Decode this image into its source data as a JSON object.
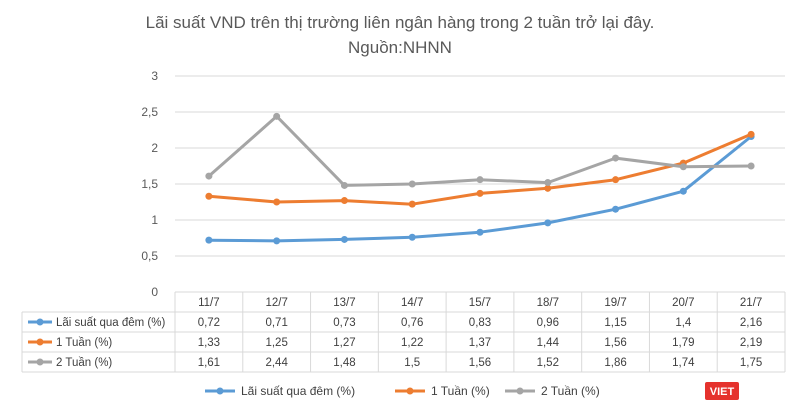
{
  "chart_data": {
    "type": "line",
    "title": "Lãi suất VND trên thị trường liên ngân hàng trong 2 tuần trở lại đây.",
    "subtitle": "Nguồn:NHNN",
    "categories": [
      "11/7",
      "12/7",
      "13/7",
      "14/7",
      "15/7",
      "18/7",
      "19/7",
      "20/7",
      "21/7"
    ],
    "ylim": [
      0,
      3
    ],
    "yticks": [
      0,
      0.5,
      1,
      1.5,
      2,
      2.5,
      3
    ],
    "ytick_labels": [
      "0",
      "0,5",
      "1",
      "1,5",
      "2",
      "2,5",
      "3"
    ],
    "grid": true,
    "data_table": true,
    "legend_position": "bottom",
    "series": [
      {
        "name": "Lãi suất qua đêm (%)",
        "color": "#5B9BD5",
        "values": [
          0.72,
          0.71,
          0.73,
          0.76,
          0.83,
          0.96,
          1.15,
          1.4,
          2.16
        ],
        "labels": [
          "0,72",
          "0,71",
          "0,73",
          "0,76",
          "0,83",
          "0,96",
          "1,15",
          "1,4",
          "2,16"
        ]
      },
      {
        "name": "1 Tuần (%)",
        "color": "#ED7D31",
        "values": [
          1.33,
          1.25,
          1.27,
          1.22,
          1.37,
          1.44,
          1.56,
          1.79,
          2.19
        ],
        "labels": [
          "1,33",
          "1,25",
          "1,27",
          "1,22",
          "1,37",
          "1,44",
          "1,56",
          "1,79",
          "2,19"
        ]
      },
      {
        "name": "2 Tuần (%)",
        "color": "#A5A5A5",
        "values": [
          1.61,
          2.44,
          1.48,
          1.5,
          1.56,
          1.52,
          1.86,
          1.74,
          1.75
        ],
        "labels": [
          "1,61",
          "2,44",
          "1,48",
          "1,5",
          "1,56",
          "1,52",
          "1,86",
          "1,74",
          "1,75"
        ]
      }
    ]
  },
  "brand": {
    "text": "VIET",
    "color": "#E5322D"
  }
}
